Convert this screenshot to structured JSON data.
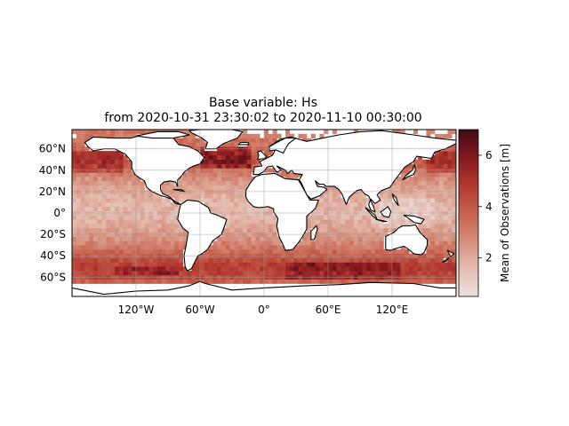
{
  "figure": {
    "title_line1": "Base variable: Hs",
    "title_line2": "from 2020-10-31 23:30:02 to 2020-11-10 00:30:00"
  },
  "map": {
    "projection": "PlateCarree",
    "lon_range": [
      -180,
      180
    ],
    "lat_range": [
      -78,
      78
    ],
    "lon_ticks": [
      {
        "value": -120,
        "label": "120°W"
      },
      {
        "value": -60,
        "label": "60°W"
      },
      {
        "value": 0,
        "label": "0°"
      },
      {
        "value": 60,
        "label": "60°E"
      },
      {
        "value": 120,
        "label": "120°E"
      }
    ],
    "lat_ticks": [
      {
        "value": 60,
        "label": "60°N"
      },
      {
        "value": 40,
        "label": "40°N"
      },
      {
        "value": 20,
        "label": "20°N"
      },
      {
        "value": 0,
        "label": "0°"
      },
      {
        "value": -20,
        "label": "20°S"
      },
      {
        "value": -40,
        "label": "40°S"
      },
      {
        "value": -60,
        "label": "60°S"
      }
    ],
    "gridlines": true,
    "coastlines": true
  },
  "chart_data": {
    "type": "heatmap",
    "variable": "Hs",
    "cell_size_deg": 4,
    "colormap": "amp",
    "vmin": 0.5,
    "vmax": 7.0,
    "colorbar_label": "Mean of Observations [m]",
    "colorbar_ticks": [
      {
        "value": 2,
        "label": "2"
      },
      {
        "value": 4,
        "label": "4"
      },
      {
        "value": 6,
        "label": "6"
      }
    ],
    "zonal_pattern": {
      "description_free": true,
      "lat_bands": [
        {
          "lat": 70,
          "hs": 3.2
        },
        {
          "lat": 60,
          "hs": 3.6
        },
        {
          "lat": 50,
          "hs": 4.2
        },
        {
          "lat": 40,
          "hs": 3.3
        },
        {
          "lat": 30,
          "hs": 2.5
        },
        {
          "lat": 20,
          "hs": 2.1
        },
        {
          "lat": 10,
          "hs": 1.8
        },
        {
          "lat": 0,
          "hs": 1.7
        },
        {
          "lat": -10,
          "hs": 2.0
        },
        {
          "lat": -20,
          "hs": 2.4
        },
        {
          "lat": -30,
          "hs": 3.0
        },
        {
          "lat": -40,
          "hs": 3.9
        },
        {
          "lat": -50,
          "hs": 4.8
        },
        {
          "lat": -60,
          "hs": 4.3
        },
        {
          "lat": -66,
          "hs": 3.4
        }
      ]
    }
  }
}
